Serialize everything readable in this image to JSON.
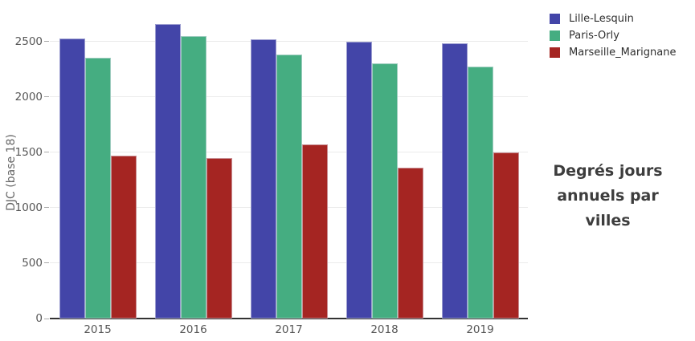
{
  "chart_data": {
    "type": "bar",
    "title": "Degrés jours annuels par villes",
    "ylabel": "DJC (base 18)",
    "xlabel": "",
    "categories": [
      "2015",
      "2016",
      "2017",
      "2018",
      "2019"
    ],
    "series": [
      {
        "name": "Lille-Lesquin",
        "color": "#4345a8",
        "values": [
          2530,
          2660,
          2520,
          2500,
          2480
        ]
      },
      {
        "name": "Paris-Orly",
        "color": "#45ad81",
        "values": [
          2350,
          2550,
          2380,
          2300,
          2270
        ]
      },
      {
        "name": "Marseille_Marignane",
        "color": "#a52522",
        "values": [
          1470,
          1450,
          1570,
          1360,
          1500
        ]
      }
    ],
    "yticks": [
      0,
      500,
      1000,
      1500,
      2000,
      2500
    ],
    "ylim": [
      0,
      2750
    ],
    "grid": true,
    "legend_position": "top-right",
    "colors": {
      "gridline": "#ebebeb",
      "axis_line": "#333333",
      "tick_label": "#565656",
      "legend_text": "#2f2f2f",
      "title_text": "#3d3d3d",
      "background": "#ffffff"
    }
  }
}
